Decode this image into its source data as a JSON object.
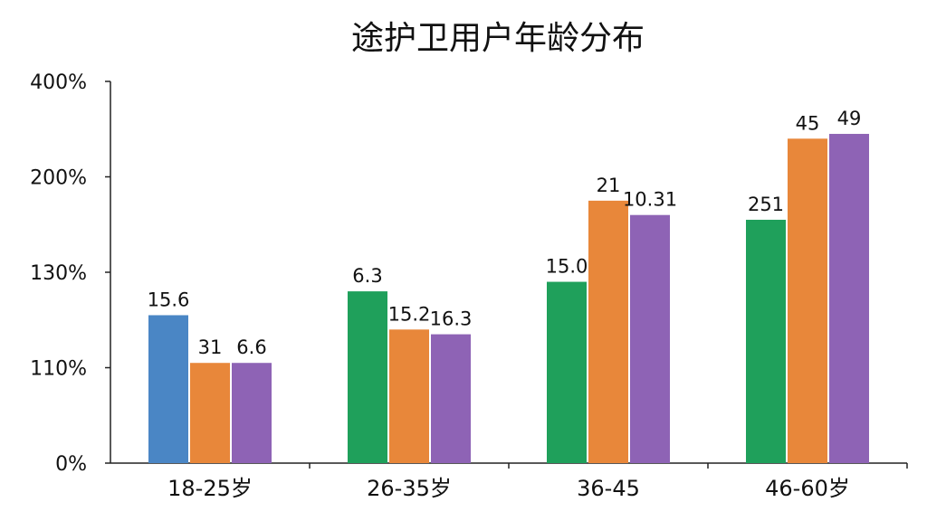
{
  "chart_data": {
    "type": "bar",
    "title": "途护卫用户年龄分布",
    "xlabel": "",
    "ylabel": "",
    "categories": [
      "18-25岁",
      "26-35岁",
      "36-45",
      "46-60岁"
    ],
    "y_ticks": [
      "0%",
      "110%",
      "130%",
      "200%",
      "400%"
    ],
    "ylim": [
      0,
      4
    ],
    "bars": [
      {
        "category": "18-25岁",
        "value": 1.55,
        "label": "15.6",
        "color": "#4a86c5"
      },
      {
        "category": "18-25岁",
        "value": 1.05,
        "label": "31",
        "color": "#e8873a"
      },
      {
        "category": "18-25岁",
        "value": 1.05,
        "label": "6.6",
        "color": "#8e63b5"
      },
      {
        "category": "26-35岁",
        "value": 1.8,
        "label": "6.3",
        "color": "#1fa05b"
      },
      {
        "category": "26-35岁",
        "value": 1.4,
        "label": "15.2",
        "color": "#e8873a"
      },
      {
        "category": "26-35岁",
        "value": 1.35,
        "label": "16.3",
        "color": "#8e63b5"
      },
      {
        "category": "36-45",
        "value": 1.9,
        "label": "15.0",
        "color": "#1fa05b"
      },
      {
        "category": "36-45",
        "value": 2.75,
        "label": "21",
        "color": "#e8873a"
      },
      {
        "category": "36-45",
        "value": 2.6,
        "label": "10.31",
        "color": "#8e63b5"
      },
      {
        "category": "46-60岁",
        "value": 2.55,
        "label": "251",
        "color": "#1fa05b"
      },
      {
        "category": "46-60岁",
        "value": 3.4,
        "label": "45",
        "color": "#e8873a"
      },
      {
        "category": "46-60岁",
        "value": 3.45,
        "label": "49",
        "color": "#8e63b5"
      }
    ],
    "grid": false,
    "legend": "none"
  }
}
